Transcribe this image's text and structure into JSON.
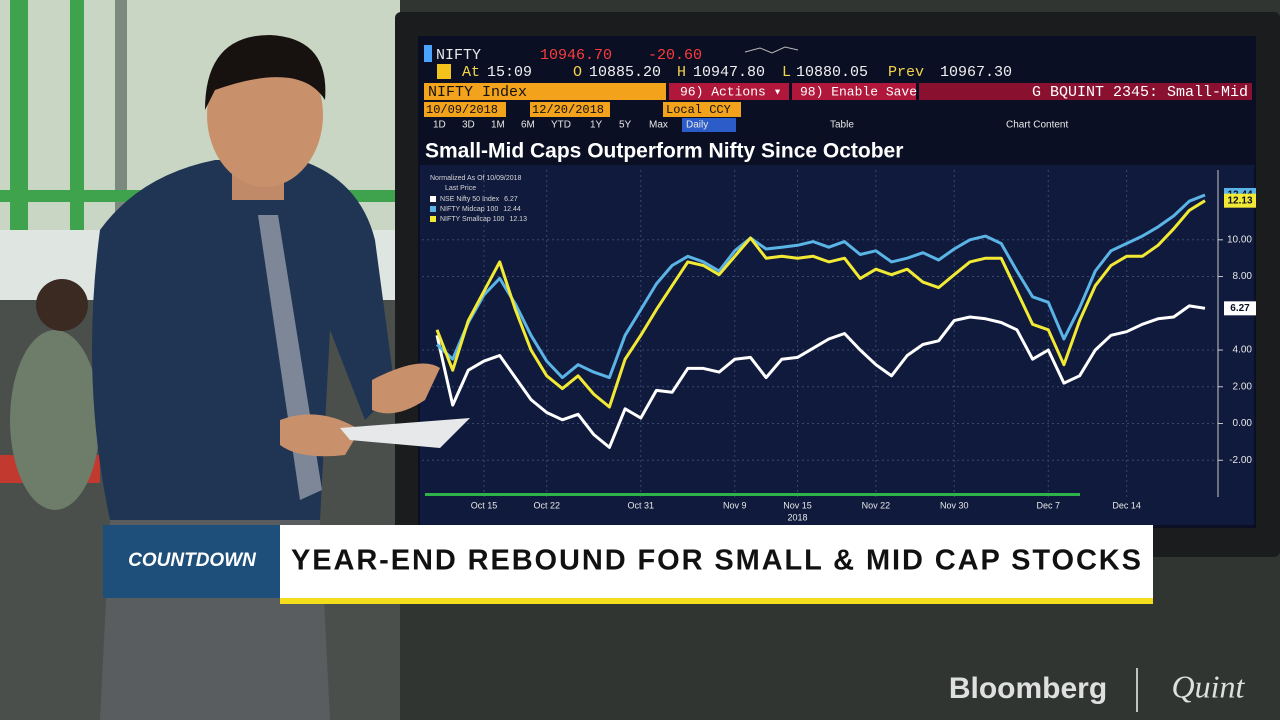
{
  "terminal": {
    "ticker": "NIFTY",
    "last": "10946.70",
    "change": "-20.60",
    "at_label": "At",
    "time": "15:09",
    "open_label": "O",
    "open": "10885.20",
    "high_label": "H",
    "high": "10947.80",
    "low_label": "L",
    "low": "10880.05",
    "prev_label": "Prev",
    "prev": "10967.30",
    "security": "NIFTY Index",
    "actions": "96) Actions ▾",
    "save": "98) Enable Save",
    "chart_id": "G BQUINT 2345: Small-Mid",
    "start_date": "10/09/2018",
    "end_date": "12/20/2018",
    "currency": "Local CCY",
    "periods": [
      "1D",
      "3D",
      "1M",
      "6M",
      "YTD",
      "1Y",
      "5Y",
      "Max"
    ],
    "frequency": "Daily",
    "table": "Table",
    "chart_content": "Chart Content"
  },
  "chart_data": {
    "type": "line",
    "title": "Small-Mid Caps Outperform Nifty Since October",
    "legend_title": "Normalized As Of 10/09/2018",
    "legend_subtitle": "Last Price",
    "categories": [
      null,
      null,
      null,
      "Oct 15",
      null,
      null,
      null,
      "Oct 22",
      null,
      null,
      null,
      null,
      null,
      "Oct 31",
      null,
      null,
      null,
      null,
      null,
      "Nov 9",
      null,
      null,
      null,
      "Nov 15",
      null,
      null,
      null,
      null,
      "Nov 22",
      null,
      null,
      null,
      null,
      "Nov 30",
      null,
      null,
      null,
      null,
      null,
      "Dec 7",
      null,
      null,
      null,
      null,
      "Dec 14",
      null,
      null,
      null,
      null,
      null
    ],
    "x_year_label": "2018",
    "ylim": [
      -4,
      13.8
    ],
    "yticks": [
      {
        "value": -2,
        "label": "-2.00"
      },
      {
        "value": 0,
        "label": "0.00"
      },
      {
        "value": 2,
        "label": "2.00"
      },
      {
        "value": 4,
        "label": "4.00"
      },
      {
        "value": 8,
        "label": "8.00"
      },
      {
        "value": 10,
        "label": "10.00"
      }
    ],
    "grid": true,
    "series": [
      {
        "name": "NSE Nifty 50 Index",
        "color": "#ffffff",
        "values": [
          4.8,
          1.0,
          2.9,
          3.4,
          3.7,
          2.5,
          1.3,
          0.6,
          0.2,
          0.5,
          -0.6,
          -1.3,
          0.8,
          0.3,
          1.8,
          1.7,
          3.0,
          3.0,
          2.8,
          3.5,
          3.6,
          2.5,
          3.5,
          3.6,
          4.1,
          4.6,
          4.9,
          4.0,
          3.2,
          2.6,
          3.7,
          4.3,
          4.5,
          5.6,
          5.8,
          5.7,
          5.5,
          5.1,
          3.5,
          4.0,
          2.2,
          2.6,
          4.0,
          4.8,
          5.0,
          5.4,
          5.7,
          5.8,
          6.4,
          6.27
        ]
      },
      {
        "name": "NIFTY Midcap 100",
        "color": "#5ab4e6",
        "values": [
          4.3,
          3.5,
          5.5,
          7.0,
          7.9,
          6.5,
          4.8,
          3.4,
          2.5,
          3.2,
          2.8,
          2.5,
          4.8,
          6.2,
          7.6,
          8.6,
          9.1,
          8.8,
          8.3,
          9.4,
          10.1,
          9.5,
          9.6,
          9.7,
          9.9,
          9.6,
          9.9,
          9.2,
          9.4,
          8.8,
          9.0,
          9.3,
          8.9,
          9.5,
          10.0,
          10.2,
          9.8,
          8.3,
          6.9,
          6.6,
          4.6,
          6.3,
          8.3,
          9.4,
          9.8,
          10.2,
          10.7,
          11.3,
          12.1,
          12.44
        ]
      },
      {
        "name": "NIFTY Smallcap 100",
        "color": "#f2e935",
        "values": [
          5.1,
          2.9,
          5.6,
          7.2,
          8.8,
          6.2,
          4.0,
          2.6,
          1.9,
          2.6,
          1.6,
          0.9,
          3.5,
          4.8,
          6.2,
          7.5,
          8.8,
          8.6,
          8.1,
          9.1,
          10.1,
          9.0,
          9.1,
          9.0,
          9.1,
          8.8,
          9.0,
          7.9,
          8.4,
          8.1,
          8.4,
          7.7,
          7.4,
          8.1,
          8.8,
          9.0,
          9.0,
          7.2,
          5.4,
          5.1,
          3.2,
          5.6,
          7.5,
          8.6,
          9.1,
          9.1,
          9.7,
          10.6,
          11.6,
          12.13
        ]
      }
    ]
  },
  "banner": {
    "segment": "COUNTDOWN",
    "headline": "YEAR-END REBOUND FOR SMALL & MID CAP STOCKS"
  },
  "branding": {
    "network": "Bloomberg",
    "partner": "Quint"
  }
}
